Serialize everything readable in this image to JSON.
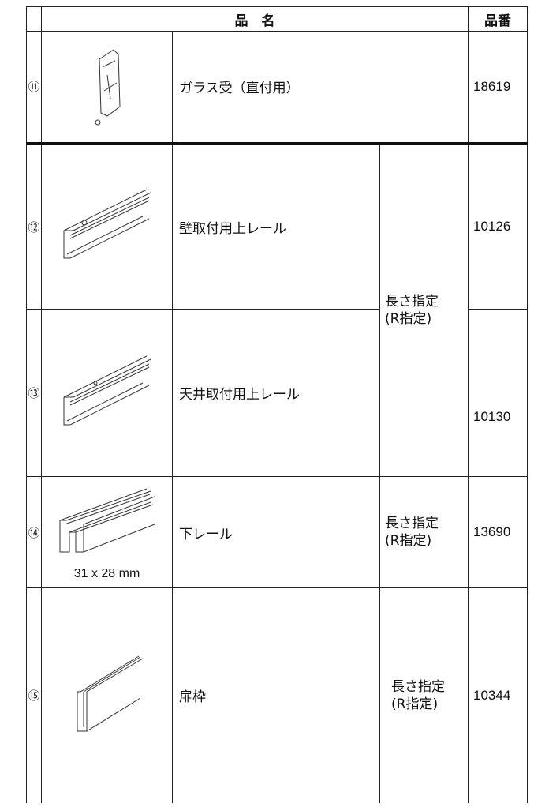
{
  "header": {
    "name": "品　名",
    "code": "品番"
  },
  "rows": [
    {
      "no": "⑪",
      "name": "ガラス受（直付用）",
      "code": "18619"
    },
    {
      "no": "⑫",
      "name": "壁取付用上レール",
      "code": "10126"
    },
    {
      "no": "⑬",
      "name": "天井取付用上レール",
      "code": "10130"
    },
    {
      "no": "⑭",
      "name": "下レール",
      "code": "13690",
      "caption": "31 x 28 mm",
      "spec": [
        "長さ指定",
        "(R指定)"
      ]
    },
    {
      "no": "⑮",
      "name": "扉枠",
      "code": "10344",
      "spec": [
        "長さ指定",
        "(R指定)"
      ]
    }
  ],
  "shared_spec": [
    "長さ指定",
    "(R指定)"
  ]
}
